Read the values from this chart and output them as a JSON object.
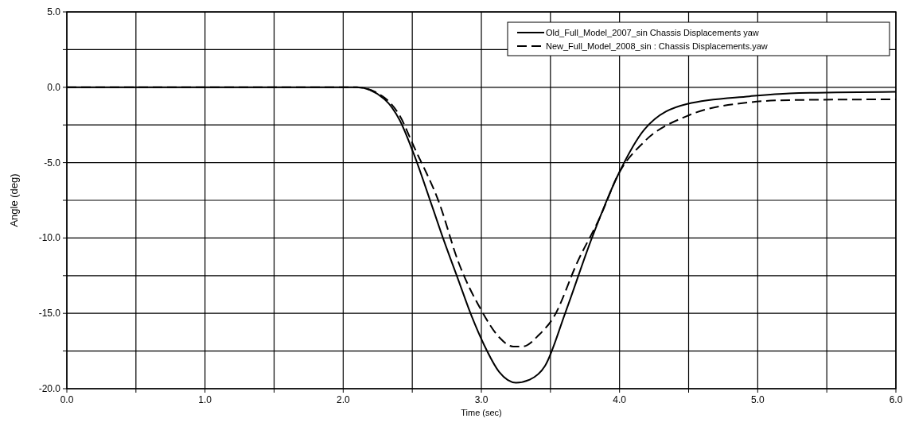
{
  "chart_data": {
    "type": "line",
    "xlabel": "Time (sec)",
    "ylabel": "Angle (deg)",
    "xlim": [
      0,
      6
    ],
    "ylim": [
      -20,
      5
    ],
    "xticks": [
      {
        "value": 0,
        "label": "0.0"
      },
      {
        "value": 0.5,
        "label": null
      },
      {
        "value": 1,
        "label": "1.0"
      },
      {
        "value": 1.5,
        "label": null
      },
      {
        "value": 2,
        "label": "2.0"
      },
      {
        "value": 2.5,
        "label": null
      },
      {
        "value": 3,
        "label": "3.0"
      },
      {
        "value": 3.5,
        "label": null
      },
      {
        "value": 4,
        "label": "4.0"
      },
      {
        "value": 4.5,
        "label": null
      },
      {
        "value": 5,
        "label": "5.0"
      },
      {
        "value": 5.5,
        "label": null
      },
      {
        "value": 6,
        "label": "6.0"
      }
    ],
    "yticks": [
      {
        "value": 5,
        "label": "5.0"
      },
      {
        "value": 2.5,
        "label": null
      },
      {
        "value": 0,
        "label": "0.0"
      },
      {
        "value": -2.5,
        "label": null
      },
      {
        "value": -5,
        "label": "-5.0"
      },
      {
        "value": -7.5,
        "label": null
      },
      {
        "value": -10,
        "label": "-10.0"
      },
      {
        "value": -12.5,
        "label": null
      },
      {
        "value": -15,
        "label": "-15.0"
      },
      {
        "value": -17.5,
        "label": null
      },
      {
        "value": -20,
        "label": "-20.0"
      }
    ],
    "grid": true,
    "legend": "top right",
    "marker": "none",
    "series": [
      {
        "name": "Old_Full_Model_2007_sin  Chassis Displacements yaw",
        "color": "#000000",
        "line_style": "solid",
        "x": [
          0,
          2.1,
          2.3,
          2.41,
          2.51,
          2.64,
          2.73,
          2.83,
          2.93,
          3.02,
          3.13,
          3.25,
          3.35,
          3.46,
          3.61,
          3.8,
          3.99,
          4.18,
          4.49,
          4.94,
          5.23,
          6
        ],
        "values": [
          0,
          0,
          -0.8,
          -2.2,
          -4.4,
          -7.8,
          -10.2,
          -12.7,
          -15.2,
          -17.1,
          -18.9,
          -19.6,
          -19.4,
          -18.5,
          -14.9,
          -10,
          -5.8,
          -2.8,
          -1.1,
          -0.6,
          -0.4,
          -0.3
        ]
      },
      {
        "name": "New_Full_Model_2008_sin : Chassis Displacements.yaw",
        "color": "#000000",
        "line_style": "dashed",
        "x": [
          0,
          2.1,
          2.3,
          2.41,
          2.51,
          2.7,
          2.83,
          3,
          3.13,
          3.23,
          3.3,
          3.42,
          3.52,
          3.7,
          3.86,
          3.99,
          4.18,
          4.49,
          4.94,
          5.23,
          6
        ],
        "values": [
          0,
          0,
          -0.7,
          -1.9,
          -3.9,
          -7.8,
          -11.5,
          -14.8,
          -16.6,
          -17.2,
          -17.2,
          -16.4,
          -15.3,
          -11.5,
          -8.6,
          -5.8,
          -3.6,
          -1.9,
          -1,
          -0.85,
          -0.8
        ]
      }
    ]
  }
}
